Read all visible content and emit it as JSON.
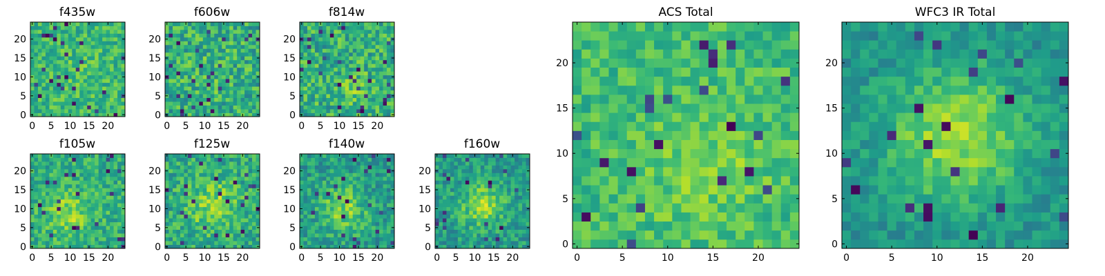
{
  "chart_data": [
    {
      "type": "heatmap",
      "title": "f435w",
      "grid_size": 25,
      "xticks": [
        "0",
        "5",
        "10",
        "15",
        "20"
      ],
      "yticks": [
        "0",
        "5",
        "10",
        "15",
        "20"
      ],
      "colormap": "viridis",
      "noise_seed": 11,
      "blob": {
        "center": [
          12,
          10
        ],
        "sigma": 5,
        "amplitude": 0.05
      },
      "background_level": 0.66,
      "noise_level": 0.16
    },
    {
      "type": "heatmap",
      "title": "f606w",
      "grid_size": 25,
      "xticks": [
        "0",
        "5",
        "10",
        "15",
        "20"
      ],
      "yticks": [
        "0",
        "5",
        "10",
        "15",
        "20"
      ],
      "colormap": "viridis",
      "noise_seed": 23,
      "blob": {
        "center": [
          12,
          10
        ],
        "sigma": 5,
        "amplitude": 0.05
      },
      "background_level": 0.62,
      "noise_level": 0.2
    },
    {
      "type": "heatmap",
      "title": "f814w",
      "grid_size": 25,
      "xticks": [
        "0",
        "5",
        "10",
        "15",
        "20"
      ],
      "yticks": [
        "0",
        "5",
        "10",
        "15",
        "20"
      ],
      "colormap": "viridis",
      "noise_seed": 37,
      "blob": {
        "center": [
          14,
          7
        ],
        "sigma": 3,
        "amplitude": 0.12
      },
      "background_level": 0.63,
      "noise_level": 0.2
    },
    {
      "type": "heatmap",
      "title": "f105w",
      "grid_size": 25,
      "xticks": [
        "0",
        "5",
        "10",
        "15",
        "20"
      ],
      "yticks": [
        "0",
        "5",
        "10",
        "15",
        "20"
      ],
      "colormap": "viridis",
      "noise_seed": 41,
      "blob": {
        "center": [
          10,
          9
        ],
        "sigma": 4.5,
        "amplitude": 0.2
      },
      "background_level": 0.62,
      "noise_level": 0.16
    },
    {
      "type": "heatmap",
      "title": "f125w",
      "grid_size": 25,
      "xticks": [
        "0",
        "5",
        "10",
        "15",
        "20"
      ],
      "yticks": [
        "0",
        "5",
        "10",
        "15",
        "20"
      ],
      "colormap": "viridis",
      "noise_seed": 53,
      "blob": {
        "center": [
          12,
          11
        ],
        "sigma": 5,
        "amplitude": 0.22
      },
      "background_level": 0.6,
      "noise_level": 0.17
    },
    {
      "type": "heatmap",
      "title": "f140w",
      "grid_size": 25,
      "xticks": [
        "0",
        "5",
        "10",
        "15",
        "20"
      ],
      "yticks": [
        "0",
        "5",
        "10",
        "15",
        "20"
      ],
      "colormap": "viridis",
      "noise_seed": 67,
      "blob": {
        "center": [
          11,
          10
        ],
        "sigma": 4.5,
        "amplitude": 0.25
      },
      "background_level": 0.55,
      "noise_level": 0.16
    },
    {
      "type": "heatmap",
      "title": "f160w",
      "grid_size": 25,
      "xticks": [
        "0",
        "5",
        "10",
        "15",
        "20"
      ],
      "yticks": [
        "0",
        "5",
        "10",
        "15",
        "20"
      ],
      "colormap": "viridis",
      "noise_seed": 79,
      "blob": {
        "center": [
          12,
          11
        ],
        "sigma": 4,
        "amplitude": 0.3
      },
      "background_level": 0.55,
      "noise_level": 0.15
    },
    {
      "type": "heatmap",
      "title": "ACS Total",
      "grid_size": 25,
      "xticks": [
        "0",
        "5",
        "10",
        "15",
        "20"
      ],
      "yticks": [
        "0",
        "5",
        "10",
        "15",
        "20"
      ],
      "colormap": "viridis",
      "noise_seed": 97,
      "blob": {
        "center": [
          14,
          9
        ],
        "sigma": 5,
        "amplitude": 0.12
      },
      "background_level": 0.68,
      "noise_level": 0.13
    },
    {
      "type": "heatmap",
      "title": "WFC3 IR Total",
      "grid_size": 25,
      "xticks": [
        "0",
        "5",
        "10",
        "15",
        "20"
      ],
      "yticks": [
        "0",
        "5",
        "10",
        "15",
        "20"
      ],
      "colormap": "viridis",
      "noise_seed": 113,
      "blob": {
        "center": [
          12,
          12
        ],
        "sigma": 5.5,
        "amplitude": 0.35
      },
      "background_level": 0.5,
      "noise_level": 0.11
    }
  ],
  "colors": {
    "viridis": [
      "#440154",
      "#482878",
      "#3e4989",
      "#31688e",
      "#26828e",
      "#1f9e89",
      "#35b779",
      "#6ece58",
      "#b5de2b",
      "#fde725"
    ]
  }
}
